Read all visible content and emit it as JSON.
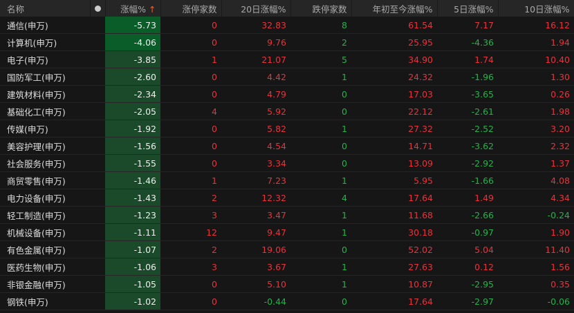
{
  "headers": {
    "name": "名称",
    "chg": "涨幅%",
    "sort_arrow": "↑",
    "limit_up": "涨停家数",
    "d20": "20日涨幅%",
    "limit_down": "跌停家数",
    "ytd": "年初至今涨幅%",
    "d5": "5日涨幅%",
    "d10": "10日涨幅%"
  },
  "colors": {
    "up": "#e8323c",
    "down": "#23b24b",
    "chg_bg_strong": "#0a5c28",
    "chg_bg": "#1b4a2b"
  },
  "rows": [
    [
      "通信(申万)",
      "-5.73",
      "0",
      "32.83",
      "8",
      "61.54",
      "7.17",
      "16.12"
    ],
    [
      "计算机(申万)",
      "-4.06",
      "0",
      "9.76",
      "2",
      "25.95",
      "-4.36",
      "1.94"
    ],
    [
      "电子(申万)",
      "-3.85",
      "1",
      "21.07",
      "5",
      "34.90",
      "1.74",
      "10.40"
    ],
    [
      "国防军工(申万)",
      "-2.60",
      "0",
      "4.42",
      "1",
      "24.32",
      "-1.96",
      "1.30"
    ],
    [
      "建筑材料(申万)",
      "-2.34",
      "0",
      "4.79",
      "0",
      "17.03",
      "-3.65",
      "0.26"
    ],
    [
      "基础化工(申万)",
      "-2.05",
      "4",
      "5.92",
      "0",
      "22.12",
      "-2.61",
      "1.98"
    ],
    [
      "传媒(申万)",
      "-1.92",
      "0",
      "5.82",
      "1",
      "27.32",
      "-2.52",
      "3.20"
    ],
    [
      "美容护理(申万)",
      "-1.56",
      "0",
      "4.54",
      "0",
      "14.71",
      "-3.62",
      "2.32"
    ],
    [
      "社会服务(申万)",
      "-1.55",
      "0",
      "3.34",
      "0",
      "13.09",
      "-2.92",
      "1.37"
    ],
    [
      "商贸零售(申万)",
      "-1.46",
      "1",
      "7.23",
      "1",
      "5.95",
      "-1.66",
      "4.08"
    ],
    [
      "电力设备(申万)",
      "-1.43",
      "2",
      "12.32",
      "4",
      "17.64",
      "1.49",
      "4.34"
    ],
    [
      "轻工制造(申万)",
      "-1.23",
      "3",
      "3.47",
      "1",
      "11.68",
      "-2.66",
      "-0.24"
    ],
    [
      "机械设备(申万)",
      "-1.11",
      "12",
      "9.47",
      "1",
      "30.18",
      "-0.97",
      "1.90"
    ],
    [
      "有色金属(申万)",
      "-1.07",
      "2",
      "19.06",
      "0",
      "52.02",
      "5.04",
      "11.40"
    ],
    [
      "医药生物(申万)",
      "-1.06",
      "3",
      "3.67",
      "1",
      "27.63",
      "0.12",
      "1.56"
    ],
    [
      "非银金融(申万)",
      "-1.05",
      "0",
      "5.10",
      "1",
      "10.87",
      "-2.95",
      "0.35"
    ],
    [
      "钢铁(申万)",
      "-1.02",
      "0",
      "-0.44",
      "0",
      "17.64",
      "-2.97",
      "-0.06"
    ]
  ]
}
